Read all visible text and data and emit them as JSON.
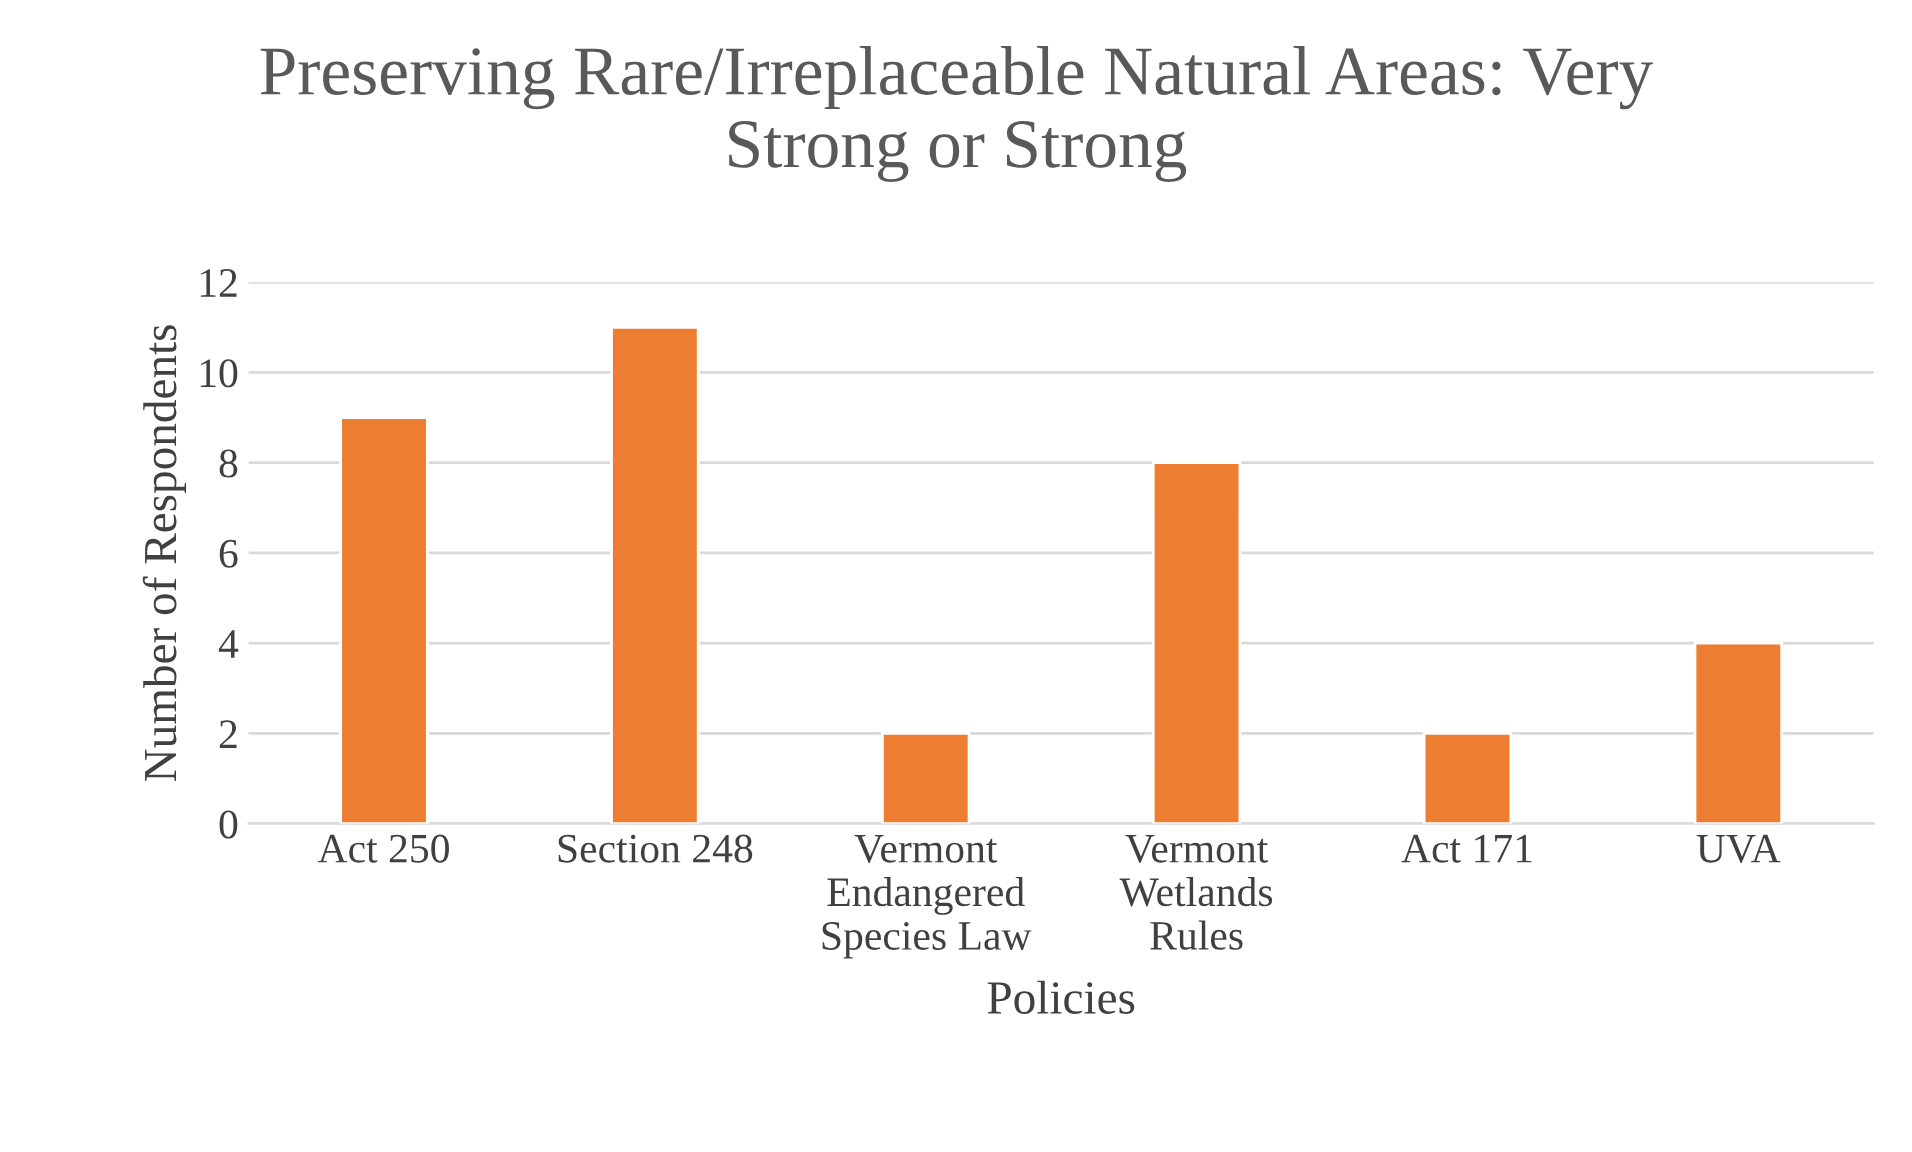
{
  "chart_data": {
    "type": "bar",
    "title": "Preserving Rare/Irreplaceable Natural Areas: Very\nStrong or Strong",
    "xlabel": "Policies",
    "ylabel": "Number of Respondents",
    "categories": [
      "Act 250",
      "Section 248",
      "Vermont\nEndangered\nSpecies Law",
      "Vermont\nWetlands\nRules",
      "Act 171",
      "UVA"
    ],
    "values": [
      9,
      11,
      2,
      8,
      2,
      4
    ],
    "color": "#ed7d31",
    "ylim": [
      0,
      12
    ],
    "yticks": [
      0,
      2,
      4,
      6,
      8,
      10,
      12
    ],
    "grid": "y",
    "legend": false
  }
}
